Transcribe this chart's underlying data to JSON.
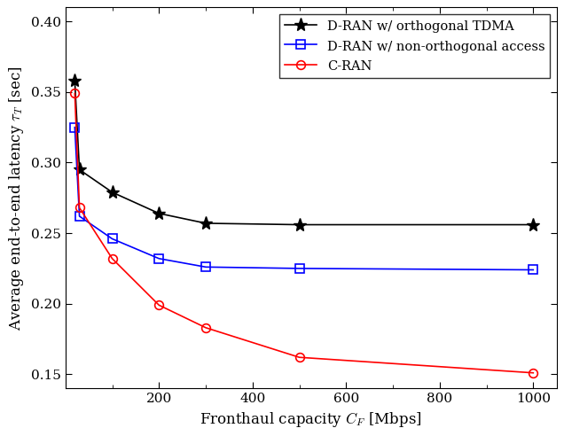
{
  "dran_tdma_x": [
    20,
    30,
    100,
    200,
    300,
    500,
    1000
  ],
  "dran_tdma_y": [
    0.358,
    0.295,
    0.279,
    0.264,
    0.257,
    0.256,
    0.256
  ],
  "dran_noma_x": [
    20,
    30,
    100,
    200,
    300,
    500,
    1000
  ],
  "dran_noma_y": [
    0.325,
    0.262,
    0.246,
    0.232,
    0.226,
    0.225,
    0.224
  ],
  "cran_x": [
    20,
    30,
    100,
    200,
    300,
    500,
    1000
  ],
  "cran_y": [
    0.349,
    0.268,
    0.232,
    0.199,
    0.183,
    0.162,
    0.151
  ],
  "dran_tdma_label": "D-RAN w/ orthogonal TDMA",
  "dran_noma_label": "D-RAN w/ non-orthogonal access",
  "cran_label": "C-RAN",
  "xlabel": "Fronthaul capacity $C_F$ [Mbps]",
  "ylabel": "Average end-to-end latency $\\tau_T$ [sec]",
  "xlim": [
    0,
    1050
  ],
  "ylim": [
    0.14,
    0.41
  ],
  "yticks": [
    0.15,
    0.2,
    0.25,
    0.3,
    0.35,
    0.4
  ],
  "xticks_major": [
    200,
    400,
    600,
    800,
    1000
  ],
  "xticks_minor": [
    100,
    300,
    500,
    700,
    900
  ],
  "dran_tdma_color": "#000000",
  "dran_noma_color": "#0000ff",
  "cran_color": "#ff0000",
  "legend_loc": "upper right",
  "figsize": [
    6.36,
    4.92
  ],
  "dpi": 100
}
